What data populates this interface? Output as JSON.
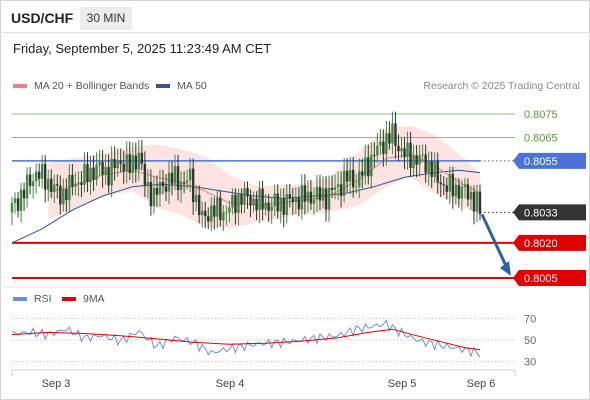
{
  "header": {
    "pair": "USD/CHF",
    "timeframe": "30 MIN",
    "datetime": "Friday, September 5, 2025 11:23:49 AM CET",
    "credit": "Research © 2025 Trading Central"
  },
  "legend": {
    "ma20_label": "MA 20 + Bollinger Bands",
    "ma50_label": "MA 50",
    "rsi_label": "RSI",
    "rsi_ma_label": "9MA"
  },
  "colors": {
    "up_candle": "#3d8c3d",
    "down_candle": "#333333",
    "ma20": "#f08080",
    "bands_fill": "#fde3e1",
    "ma50": "#34538f",
    "pivot": "#4a72d8",
    "support": "#e00000",
    "resistance": "#8cc070",
    "last_price": "#333333",
    "arrow": "#2f5fa8",
    "rsi": "#6b8fe0",
    "rsi_ma": "#e00000"
  },
  "chart_data": [
    {
      "type": "candlestick",
      "title": "USD/CHF",
      "x_ticks": [
        "Sep 3",
        "Sep 4",
        "Sep 5",
        "Sep 6"
      ],
      "y_ticks": [
        "0.8075",
        "0.8065",
        "0.8055",
        "0.8033",
        "0.8020",
        "0.8005"
      ],
      "ylim": [
        0.8002,
        0.8081
      ],
      "levels": [
        {
          "label": "0.8075",
          "value": 0.8075,
          "role": "resistance"
        },
        {
          "label": "0.8065",
          "value": 0.8065,
          "role": "resistance"
        },
        {
          "label": "0.8055",
          "value": 0.8055,
          "role": "pivot"
        },
        {
          "label": "0.8033",
          "value": 0.8033,
          "role": "last"
        },
        {
          "label": "0.8020",
          "value": 0.802,
          "role": "support"
        },
        {
          "label": "0.8005",
          "value": 0.8005,
          "role": "support"
        }
      ],
      "forecast_arrow": {
        "from": 0.8033,
        "to": 0.8005
      },
      "close_path": [
        [
          0,
          0.8035
        ],
        [
          4,
          0.8042
        ],
        [
          8,
          0.805
        ],
        [
          12,
          0.8046
        ],
        [
          16,
          0.804
        ],
        [
          20,
          0.8045
        ],
        [
          24,
          0.8048
        ],
        [
          28,
          0.8052
        ],
        [
          32,
          0.805
        ],
        [
          36,
          0.8055
        ],
        [
          39,
          0.8052
        ],
        [
          42,
          0.8058
        ],
        [
          44,
          0.8045
        ],
        [
          47,
          0.804
        ],
        [
          50,
          0.8045
        ],
        [
          54,
          0.8048
        ],
        [
          57,
          0.8045
        ],
        [
          59,
          0.8048
        ],
        [
          61,
          0.8038
        ],
        [
          63,
          0.803
        ],
        [
          66,
          0.8034
        ],
        [
          70,
          0.8033
        ],
        [
          73,
          0.8036
        ],
        [
          76,
          0.804
        ],
        [
          80,
          0.8038
        ],
        [
          85,
          0.8036
        ],
        [
          90,
          0.8037
        ],
        [
          95,
          0.8039
        ],
        [
          100,
          0.804
        ],
        [
          104,
          0.804
        ],
        [
          108,
          0.8044
        ],
        [
          111,
          0.8048
        ],
        [
          114,
          0.8046
        ],
        [
          117,
          0.8052
        ],
        [
          120,
          0.8058
        ],
        [
          123,
          0.8063
        ],
        [
          126,
          0.8066
        ],
        [
          128,
          0.8061
        ],
        [
          130,
          0.8058
        ],
        [
          133,
          0.8056
        ],
        [
          136,
          0.8055
        ],
        [
          139,
          0.8052
        ],
        [
          141,
          0.8047
        ],
        [
          144,
          0.8044
        ],
        [
          147,
          0.8043
        ],
        [
          150,
          0.8042
        ],
        [
          152,
          0.804
        ],
        [
          154,
          0.8037
        ],
        [
          155,
          0.8033
        ]
      ],
      "ma20_path": [
        [
          12,
          0.8042
        ],
        [
          20,
          0.8044
        ],
        [
          30,
          0.8049
        ],
        [
          40,
          0.8051
        ],
        [
          48,
          0.8048
        ],
        [
          56,
          0.8046
        ],
        [
          64,
          0.8042
        ],
        [
          72,
          0.8037
        ],
        [
          82,
          0.8036
        ],
        [
          95,
          0.8038
        ],
        [
          105,
          0.804
        ],
        [
          115,
          0.8047
        ],
        [
          124,
          0.8056
        ],
        [
          132,
          0.8058
        ],
        [
          140,
          0.8053
        ],
        [
          148,
          0.8046
        ],
        [
          155,
          0.8041
        ]
      ],
      "band_upper": [
        [
          12,
          0.8054
        ],
        [
          20,
          0.8056
        ],
        [
          30,
          0.8058
        ],
        [
          40,
          0.8061
        ],
        [
          48,
          0.8062
        ],
        [
          56,
          0.806
        ],
        [
          64,
          0.8057
        ],
        [
          72,
          0.8049
        ],
        [
          82,
          0.8044
        ],
        [
          95,
          0.8045
        ],
        [
          105,
          0.8048
        ],
        [
          115,
          0.8059
        ],
        [
          124,
          0.8069
        ],
        [
          132,
          0.807
        ],
        [
          140,
          0.8066
        ],
        [
          148,
          0.8058
        ],
        [
          155,
          0.805
        ]
      ],
      "band_lower": [
        [
          12,
          0.803
        ],
        [
          20,
          0.8034
        ],
        [
          30,
          0.804
        ],
        [
          40,
          0.8042
        ],
        [
          48,
          0.8035
        ],
        [
          56,
          0.8032
        ],
        [
          64,
          0.8027
        ],
        [
          72,
          0.8026
        ],
        [
          82,
          0.8029
        ],
        [
          95,
          0.8032
        ],
        [
          105,
          0.8033
        ],
        [
          115,
          0.8036
        ],
        [
          124,
          0.8044
        ],
        [
          132,
          0.8048
        ],
        [
          140,
          0.8041
        ],
        [
          148,
          0.8036
        ],
        [
          155,
          0.8032
        ]
      ],
      "ma50_path": [
        [
          0,
          0.802
        ],
        [
          10,
          0.8026
        ],
        [
          20,
          0.8034
        ],
        [
          30,
          0.804
        ],
        [
          40,
          0.8044
        ],
        [
          50,
          0.8045
        ],
        [
          60,
          0.8044
        ],
        [
          70,
          0.8042
        ],
        [
          80,
          0.804
        ],
        [
          90,
          0.8039
        ],
        [
          100,
          0.804
        ],
        [
          110,
          0.8041
        ],
        [
          120,
          0.8044
        ],
        [
          130,
          0.8048
        ],
        [
          140,
          0.805
        ],
        [
          148,
          0.8051
        ],
        [
          155,
          0.805
        ]
      ]
    },
    {
      "type": "line",
      "title": "RSI",
      "y_ticks": [
        "70",
        "50",
        "30"
      ],
      "ylim": [
        25,
        75
      ],
      "series": [
        {
          "name": "RSI",
          "points": [
            [
              0,
              56
            ],
            [
              6,
              57
            ],
            [
              12,
              55
            ],
            [
              18,
              60
            ],
            [
              24,
              52
            ],
            [
              30,
              54
            ],
            [
              36,
              49
            ],
            [
              42,
              58
            ],
            [
              48,
              44
            ],
            [
              54,
              52
            ],
            [
              60,
              48
            ],
            [
              66,
              38
            ],
            [
              72,
              42
            ],
            [
              78,
              45
            ],
            [
              84,
              47
            ],
            [
              90,
              48
            ],
            [
              96,
              50
            ],
            [
              102,
              52
            ],
            [
              108,
              54
            ],
            [
              114,
              60
            ],
            [
              118,
              62
            ],
            [
              124,
              65
            ],
            [
              128,
              58
            ],
            [
              134,
              50
            ],
            [
              140,
              46
            ],
            [
              146,
              43
            ],
            [
              152,
              40
            ],
            [
              155,
              37
            ]
          ]
        },
        {
          "name": "9MA",
          "points": [
            [
              0,
              55
            ],
            [
              12,
              57
            ],
            [
              24,
              56
            ],
            [
              36,
              54
            ],
            [
              48,
              51
            ],
            [
              60,
              48
            ],
            [
              72,
              46
            ],
            [
              84,
              47
            ],
            [
              96,
              49
            ],
            [
              108,
              52
            ],
            [
              118,
              57
            ],
            [
              126,
              60
            ],
            [
              134,
              54
            ],
            [
              144,
              47
            ],
            [
              150,
              43
            ],
            [
              155,
              41
            ]
          ]
        }
      ]
    }
  ]
}
